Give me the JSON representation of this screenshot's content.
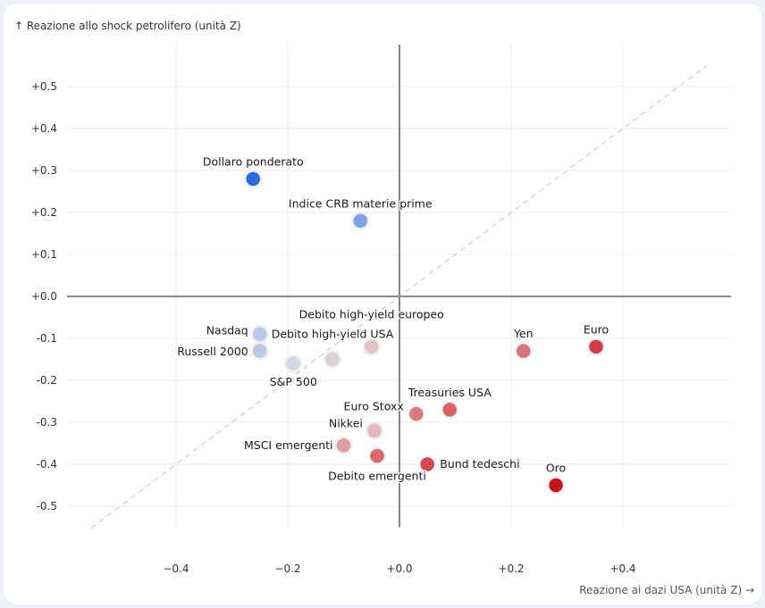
{
  "chart_data": {
    "type": "scatter",
    "ylabel": "↑ Reazione allo shock petrolifero (unità Z)",
    "xlabel": "Reazione ai dazi USA (unità Z) →",
    "xlim": [
      -0.595,
      0.595
    ],
    "ylim": [
      -0.55,
      0.6
    ],
    "xticks": [
      -0.4,
      -0.2,
      0.0,
      0.2,
      0.4
    ],
    "xtick_labels": [
      "−0.4",
      "−0.2",
      "+0.0",
      "+0.2",
      "+0.4"
    ],
    "yticks": [
      0.5,
      0.4,
      0.3,
      0.2,
      0.1,
      0.0,
      -0.1,
      -0.2,
      -0.3,
      -0.4,
      -0.5
    ],
    "ytick_labels": [
      "+0.5",
      "+0.4",
      "+0.3",
      "+0.2",
      "+0.1",
      "+0.0",
      "-0.1",
      "-0.2",
      "-0.3",
      "-0.4",
      "-0.5"
    ],
    "grid": true,
    "reference_line": "y = x (dashed)",
    "points": [
      {
        "label": "Dollaro ponderato",
        "x": -0.262,
        "y": 0.28,
        "color": "#2f6bdc"
      },
      {
        "label": "Indice CRB materie prime",
        "x": -0.07,
        "y": 0.18,
        "color": "#7fa2e0"
      },
      {
        "label": "Nasdaq",
        "x": -0.25,
        "y": -0.09,
        "color": "#b9c8e6"
      },
      {
        "label": "Russell 2000",
        "x": -0.25,
        "y": -0.13,
        "color": "#b9c8e6"
      },
      {
        "label": "S&P 500",
        "x": -0.19,
        "y": -0.16,
        "color": "#d3d9e5"
      },
      {
        "label": "Debito high-yield USA",
        "x": -0.12,
        "y": -0.15,
        "color": "#d9d1d3"
      },
      {
        "label": "Debito high-yield europeo",
        "x": -0.05,
        "y": -0.12,
        "color": "#e2c4c6"
      },
      {
        "label": "Yen",
        "x": 0.222,
        "y": -0.13,
        "color": "#d87478"
      },
      {
        "label": "Euro",
        "x": 0.352,
        "y": -0.12,
        "color": "#cf3d45"
      },
      {
        "label": "Euro Stoxx",
        "x": 0.03,
        "y": -0.28,
        "color": "#d97a7e"
      },
      {
        "label": "Treasuries USA",
        "x": 0.09,
        "y": -0.27,
        "color": "#d66468"
      },
      {
        "label": "Nikkei",
        "x": -0.045,
        "y": -0.32,
        "color": "#e3b9bb"
      },
      {
        "label": "MSCI emergenti",
        "x": -0.1,
        "y": -0.355,
        "color": "#dc9fa2"
      },
      {
        "label": "Debito emergenti",
        "x": -0.04,
        "y": -0.38,
        "color": "#d6696d"
      },
      {
        "label": "Bund tedeschi",
        "x": 0.05,
        "y": -0.4,
        "color": "#cf4a51"
      },
      {
        "label": "Oro",
        "x": 0.28,
        "y": -0.45,
        "color": "#c4141e"
      }
    ]
  }
}
